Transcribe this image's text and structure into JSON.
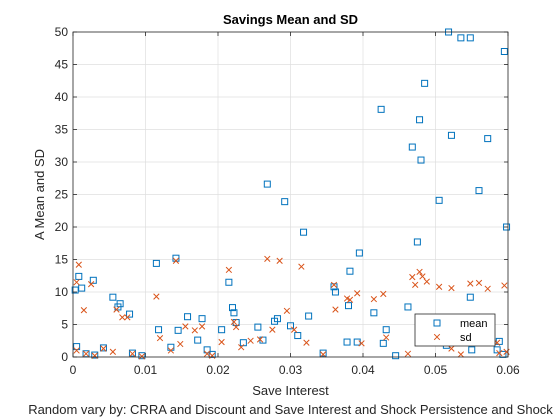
{
  "chart_data": {
    "type": "scatter",
    "title": "Savings Mean and SD",
    "xlabel": "Save Interest",
    "ylabel": "A Mean and SD",
    "caption": "Random vary by: CRRA and Discount and Save Interest and Shock Persistence and Shock",
    "xlim": [
      0,
      0.06
    ],
    "ylim": [
      0,
      50
    ],
    "xticks": [
      0,
      0.01,
      0.02,
      0.03,
      0.04,
      0.05,
      0.06
    ],
    "xtick_labels": [
      "0",
      "0.01",
      "0.02",
      "0.03",
      "0.04",
      "0.05",
      "0.06"
    ],
    "yticks": [
      0,
      5,
      10,
      15,
      20,
      25,
      30,
      35,
      40,
      45,
      50
    ],
    "ytick_labels": [
      "0",
      "5",
      "10",
      "15",
      "20",
      "25",
      "30",
      "35",
      "40",
      "45",
      "50"
    ],
    "grid": true,
    "legend_position": "bottom-right",
    "series": [
      {
        "name": "mean",
        "marker": "square",
        "color": "#0072BD",
        "points": [
          [
            0.0003,
            10.3
          ],
          [
            0.0008,
            12.4
          ],
          [
            0.0012,
            10.6
          ],
          [
            0.0028,
            11.8
          ],
          [
            0.0005,
            1.6
          ],
          [
            0.0018,
            0.5
          ],
          [
            0.003,
            0.3
          ],
          [
            0.0042,
            1.4
          ],
          [
            0.0055,
            9.2
          ],
          [
            0.0062,
            7.7
          ],
          [
            0.0065,
            8.2
          ],
          [
            0.0078,
            6.6
          ],
          [
            0.0082,
            0.6
          ],
          [
            0.0095,
            0.2
          ],
          [
            0.0118,
            4.2
          ],
          [
            0.0115,
            14.4
          ],
          [
            0.0135,
            1.5
          ],
          [
            0.0142,
            15.2
          ],
          [
            0.0145,
            4.1
          ],
          [
            0.0158,
            6.2
          ],
          [
            0.0172,
            2.6
          ],
          [
            0.0178,
            5.9
          ],
          [
            0.0185,
            1.1
          ],
          [
            0.0192,
            0.4
          ],
          [
            0.0205,
            4.2
          ],
          [
            0.0215,
            11.5
          ],
          [
            0.022,
            7.6
          ],
          [
            0.0222,
            6.8
          ],
          [
            0.0225,
            5.3
          ],
          [
            0.0235,
            2.2
          ],
          [
            0.0255,
            4.6
          ],
          [
            0.0262,
            2.6
          ],
          [
            0.0268,
            26.6
          ],
          [
            0.0278,
            5.5
          ],
          [
            0.0282,
            5.9
          ],
          [
            0.0292,
            23.9
          ],
          [
            0.03,
            4.8
          ],
          [
            0.031,
            3.3
          ],
          [
            0.0318,
            19.2
          ],
          [
            0.0325,
            6.3
          ],
          [
            0.0345,
            0.6
          ],
          [
            0.036,
            10.8
          ],
          [
            0.0362,
            10.0
          ],
          [
            0.0378,
            2.3
          ],
          [
            0.038,
            7.9
          ],
          [
            0.0382,
            13.2
          ],
          [
            0.0392,
            2.3
          ],
          [
            0.0395,
            16.0
          ],
          [
            0.0415,
            6.8
          ],
          [
            0.0425,
            38.1
          ],
          [
            0.0428,
            2.1
          ],
          [
            0.0432,
            4.2
          ],
          [
            0.0445,
            0.2
          ],
          [
            0.0462,
            7.7
          ],
          [
            0.0468,
            32.3
          ],
          [
            0.0475,
            17.7
          ],
          [
            0.0478,
            36.5
          ],
          [
            0.048,
            30.3
          ],
          [
            0.0485,
            42.1
          ],
          [
            0.0492,
            2.3
          ],
          [
            0.0505,
            24.1
          ],
          [
            0.0518,
            50.0
          ],
          [
            0.0522,
            34.1
          ],
          [
            0.0535,
            49.1
          ],
          [
            0.0548,
            9.2
          ],
          [
            0.0548,
            49.1
          ],
          [
            0.056,
            25.6
          ],
          [
            0.0572,
            33.6
          ],
          [
            0.0585,
            1.1
          ],
          [
            0.0595,
            47.0
          ],
          [
            0.0598,
            20.0
          ],
          [
            0.0588,
            2.4
          ],
          [
            0.0593,
            0.4
          ],
          [
            0.055,
            1.1
          ],
          [
            0.0515,
            1.8
          ]
        ]
      },
      {
        "name": "sd",
        "marker": "x",
        "color": "#D95319",
        "points": [
          [
            0.0005,
            11.5
          ],
          [
            0.0008,
            14.2
          ],
          [
            0.0015,
            7.2
          ],
          [
            0.0025,
            11.2
          ],
          [
            0.0005,
            1.0
          ],
          [
            0.0018,
            0.5
          ],
          [
            0.003,
            0.2
          ],
          [
            0.0042,
            1.3
          ],
          [
            0.0055,
            0.8
          ],
          [
            0.006,
            7.3
          ],
          [
            0.0068,
            6.1
          ],
          [
            0.0075,
            6.1
          ],
          [
            0.0082,
            0.5
          ],
          [
            0.0095,
            0.1
          ],
          [
            0.0115,
            9.3
          ],
          [
            0.012,
            2.9
          ],
          [
            0.0135,
            1.0
          ],
          [
            0.0142,
            14.8
          ],
          [
            0.0148,
            2.0
          ],
          [
            0.0155,
            4.7
          ],
          [
            0.0168,
            4.1
          ],
          [
            0.0178,
            4.7
          ],
          [
            0.0185,
            0.5
          ],
          [
            0.0192,
            0.2
          ],
          [
            0.0205,
            2.3
          ],
          [
            0.0215,
            13.4
          ],
          [
            0.0222,
            5.4
          ],
          [
            0.0225,
            4.6
          ],
          [
            0.0232,
            1.5
          ],
          [
            0.0245,
            2.5
          ],
          [
            0.0258,
            2.7
          ],
          [
            0.0268,
            15.1
          ],
          [
            0.0275,
            4.2
          ],
          [
            0.0285,
            14.8
          ],
          [
            0.0295,
            7.1
          ],
          [
            0.0305,
            4.2
          ],
          [
            0.0315,
            13.9
          ],
          [
            0.0322,
            2.2
          ],
          [
            0.0345,
            0.4
          ],
          [
            0.036,
            11.1
          ],
          [
            0.0362,
            7.3
          ],
          [
            0.0378,
            9.0
          ],
          [
            0.0382,
            8.8
          ],
          [
            0.0392,
            9.8
          ],
          [
            0.0398,
            2.1
          ],
          [
            0.0415,
            8.9
          ],
          [
            0.0428,
            9.7
          ],
          [
            0.0432,
            3.0
          ],
          [
            0.0462,
            0.5
          ],
          [
            0.0468,
            12.3
          ],
          [
            0.0472,
            11.1
          ],
          [
            0.0478,
            13.1
          ],
          [
            0.0482,
            12.4
          ],
          [
            0.0488,
            11.6
          ],
          [
            0.0492,
            6.0
          ],
          [
            0.0505,
            10.8
          ],
          [
            0.051,
            2.3
          ],
          [
            0.0522,
            10.6
          ],
          [
            0.0535,
            4.4
          ],
          [
            0.0548,
            11.3
          ],
          [
            0.0555,
            4.6
          ],
          [
            0.056,
            11.4
          ],
          [
            0.0572,
            10.5
          ],
          [
            0.0585,
            2.2
          ],
          [
            0.0595,
            11.0
          ],
          [
            0.0598,
            0.8
          ],
          [
            0.0588,
            0.6
          ],
          [
            0.0535,
            0.4
          ],
          [
            0.0522,
            1.3
          ]
        ]
      }
    ]
  }
}
